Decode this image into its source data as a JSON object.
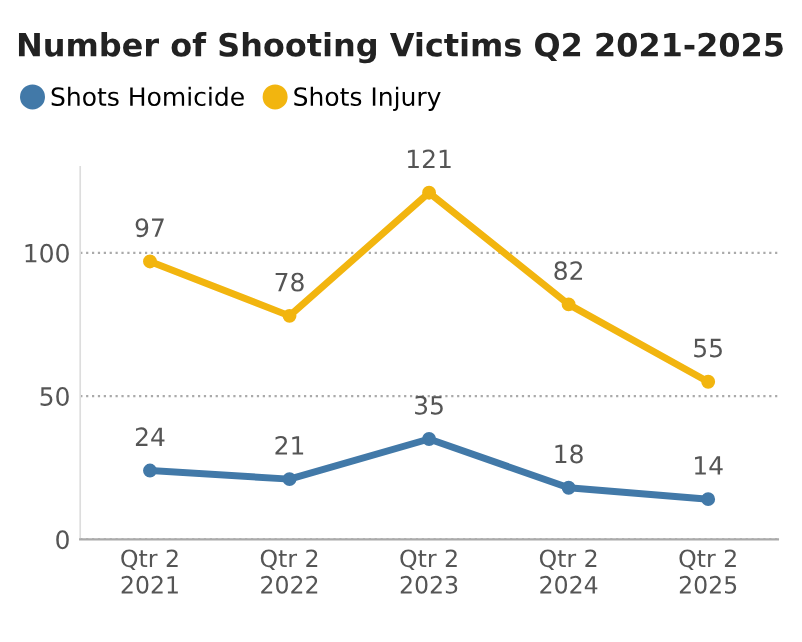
{
  "chart_data": {
    "type": "line",
    "title": "Number of Shooting Victims Q2 2021-2025",
    "categories": [
      "Qtr 2\n2021",
      "Qtr 2\n2022",
      "Qtr 2\n2023",
      "Qtr 2\n2024",
      "Qtr 2\n2025"
    ],
    "series": [
      {
        "name": "Shots Homicide",
        "color": "#4279a8",
        "values": [
          24,
          21,
          35,
          18,
          14
        ]
      },
      {
        "name": "Shots Injury",
        "color": "#f2b50f",
        "values": [
          97,
          78,
          121,
          82,
          55
        ]
      }
    ],
    "ylim": [
      0,
      130
    ],
    "yticks": [
      0,
      50,
      100
    ],
    "grid": "y",
    "legend": "top left",
    "marker": "circle",
    "line_style": "solid",
    "data_labels": true
  }
}
